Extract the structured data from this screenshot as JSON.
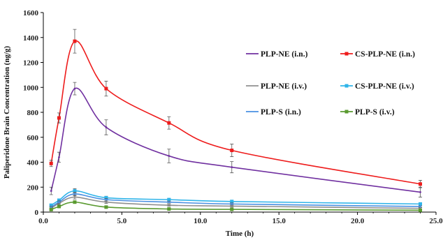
{
  "chart_data": {
    "type": "line",
    "title": "",
    "xlabel": "Time (h)",
    "ylabel": "Paliperidone Brain Concentration (ng/g)",
    "xlim": [
      0,
      25
    ],
    "ylim": [
      0,
      1600
    ],
    "xticks": [
      "0.0",
      "5.0",
      "10.0",
      "15.0",
      "20.0",
      "25.0"
    ],
    "yticks": [
      "0",
      "200",
      "400",
      "600",
      "800",
      "1000",
      "1200",
      "1400",
      "1600"
    ],
    "grid": false,
    "legend_position": "right",
    "x": [
      0.5,
      1,
      2,
      4,
      8,
      12,
      24
    ],
    "series": [
      {
        "name": "PLP-NE (i.n.)",
        "color": "#7030a0",
        "marker": "none",
        "values": [
          170,
          440,
          990,
          680,
          450,
          360,
          160
        ],
        "errors": [
          30,
          40,
          50,
          60,
          55,
          45,
          40
        ]
      },
      {
        "name": "CS-PLP-NE (i.n.)",
        "color": "#ee1c1c",
        "marker": "square",
        "values": [
          390,
          755,
          1370,
          990,
          715,
          495,
          225
        ],
        "errors": [
          25,
          40,
          95,
          60,
          50,
          50,
          30
        ]
      },
      {
        "name": "PLP-NE (i.v.)",
        "color": "#909090",
        "marker": "none",
        "values": [
          30,
          70,
          120,
          80,
          55,
          48,
          30
        ],
        "errors": [
          8,
          10,
          15,
          10,
          8,
          8,
          6
        ]
      },
      {
        "name": "CS-PLP-NE (i.v.)",
        "color": "#2fb4e9",
        "marker": "square",
        "values": [
          55,
          95,
          170,
          115,
          100,
          85,
          65
        ],
        "errors": [
          8,
          10,
          18,
          12,
          10,
          10,
          8
        ]
      },
      {
        "name": "PLP-S (i.n.)",
        "color": "#4a90e2",
        "marker": "none",
        "values": [
          40,
          80,
          145,
          100,
          80,
          65,
          45
        ],
        "errors": [
          8,
          10,
          15,
          10,
          8,
          8,
          6
        ]
      },
      {
        "name": "PLP-S (i.v.)",
        "color": "#5a9a30",
        "marker": "square",
        "values": [
          20,
          45,
          80,
          40,
          25,
          22,
          15
        ],
        "errors": [
          5,
          8,
          10,
          8,
          5,
          5,
          4
        ]
      }
    ]
  }
}
